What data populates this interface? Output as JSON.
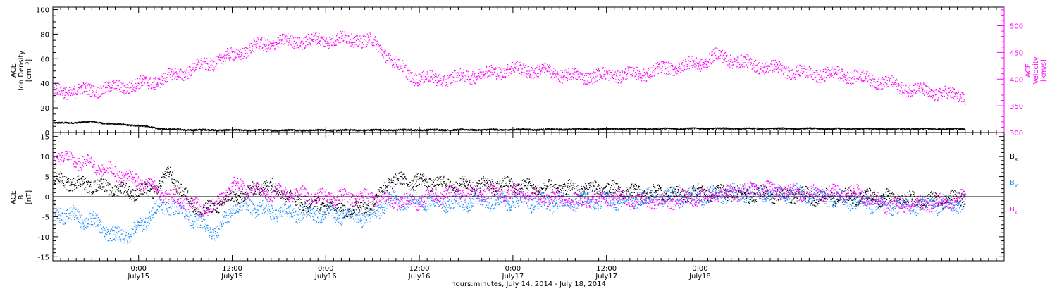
{
  "chart_data": [
    {
      "type": "scatter",
      "panel": "plasma",
      "ylabel_left": [
        "ACE",
        "Ion Density",
        "[cm⁻³]"
      ],
      "ylabel_right": [
        "ACE",
        "Velocity",
        "[km/s]"
      ],
      "left_axis": {
        "ylim": [
          0,
          102
        ],
        "ticks": [
          0,
          20,
          40,
          60,
          80,
          100
        ],
        "minor_step": 5
      },
      "right_axis": {
        "ylim": [
          300,
          535
        ],
        "ticks": [
          300,
          350,
          400,
          450,
          500
        ],
        "minor_step": 10
      },
      "series": [
        {
          "axis": "left",
          "color": "#000000",
          "knots": [
            [
              -10,
              8
            ],
            [
              -6,
              9
            ],
            [
              -3,
              7
            ],
            [
              0,
              6
            ],
            [
              2,
              4
            ],
            [
              4,
              3
            ],
            [
              6,
              2.5
            ],
            [
              12,
              2.2
            ],
            [
              24,
              2.2
            ],
            [
              36,
              2.4
            ],
            [
              48,
              2.6
            ],
            [
              60,
              3.2
            ],
            [
              72,
              3.6
            ],
            [
              84,
              3.5
            ],
            [
              96,
              3.3
            ],
            [
              106,
              3.2
            ]
          ],
          "noise": 0.6
        },
        {
          "axis": "right",
          "color": "#ff00ff",
          "knots": [
            [
              -10,
              378
            ],
            [
              -6,
              380
            ],
            [
              -3,
              385
            ],
            [
              0,
              390
            ],
            [
              3,
              400
            ],
            [
              6,
              415
            ],
            [
              9,
              430
            ],
            [
              12,
              445
            ],
            [
              15,
              462
            ],
            [
              18,
              470
            ],
            [
              21,
              472
            ],
            [
              24,
              475
            ],
            [
              28,
              475
            ],
            [
              30,
              470
            ],
            [
              33,
              430
            ],
            [
              35,
              405
            ],
            [
              38,
              400
            ],
            [
              40,
              402
            ],
            [
              44,
              410
            ],
            [
              48,
              420
            ],
            [
              52,
              415
            ],
            [
              56,
              405
            ],
            [
              60,
              408
            ],
            [
              64,
              410
            ],
            [
              68,
              422
            ],
            [
              72,
              430
            ],
            [
              74,
              445
            ],
            [
              78,
              430
            ],
            [
              82,
              420
            ],
            [
              86,
              410
            ],
            [
              90,
              410
            ],
            [
              94,
              400
            ],
            [
              98,
              385
            ],
            [
              102,
              375
            ],
            [
              106,
              368
            ]
          ],
          "noise": 12
        }
      ]
    },
    {
      "type": "scatter",
      "panel": "magnetic-field",
      "ylabel_left": [
        "ACE",
        "B",
        "[nT]"
      ],
      "ylim": [
        -16,
        16
      ],
      "ticks": [
        -15,
        -10,
        -5,
        0,
        5,
        10,
        15
      ],
      "minor_step": 1,
      "zero_line": true,
      "legend": [
        "B",
        "B",
        "B"
      ],
      "legend_sub": [
        "x",
        "y",
        "z"
      ],
      "series": [
        {
          "color": "#000000",
          "knots": [
            [
              -10,
              4
            ],
            [
              -6,
              3
            ],
            [
              -3,
              2
            ],
            [
              0,
              1
            ],
            [
              2,
              2
            ],
            [
              4,
              6
            ],
            [
              6,
              0
            ],
            [
              8,
              -4
            ],
            [
              10,
              -2
            ],
            [
              12,
              0
            ],
            [
              14,
              1
            ],
            [
              16,
              3
            ],
            [
              18,
              2
            ],
            [
              20,
              -1
            ],
            [
              22,
              -2
            ],
            [
              24,
              -2
            ],
            [
              26,
              -3
            ],
            [
              28,
              -3
            ],
            [
              30,
              -2
            ],
            [
              32,
              4
            ],
            [
              36,
              4
            ],
            [
              40,
              3
            ],
            [
              44,
              3
            ],
            [
              48,
              3
            ],
            [
              52,
              2
            ],
            [
              56,
              2
            ],
            [
              60,
              2
            ],
            [
              64,
              1
            ],
            [
              68,
              1
            ],
            [
              72,
              1
            ],
            [
              76,
              1
            ],
            [
              80,
              0.5
            ],
            [
              84,
              0.5
            ],
            [
              88,
              0
            ],
            [
              92,
              0
            ],
            [
              96,
              0
            ],
            [
              100,
              -1
            ],
            [
              104,
              -0.5
            ],
            [
              106,
              0
            ]
          ],
          "noise": 1.6
        },
        {
          "color": "#1a8fff",
          "knots": [
            [
              -10,
              -4
            ],
            [
              -6,
              -6
            ],
            [
              -3,
              -10
            ],
            [
              0,
              -8
            ],
            [
              2,
              -3
            ],
            [
              4,
              -2
            ],
            [
              6,
              -4
            ],
            [
              8,
              -7
            ],
            [
              10,
              -9
            ],
            [
              12,
              -3
            ],
            [
              14,
              -2
            ],
            [
              16,
              -3
            ],
            [
              18,
              -4
            ],
            [
              20,
              -4
            ],
            [
              24,
              -4
            ],
            [
              28,
              -5
            ],
            [
              30,
              -5
            ],
            [
              32,
              -1
            ],
            [
              36,
              -1
            ],
            [
              40,
              -1.5
            ],
            [
              44,
              -1
            ],
            [
              48,
              -1
            ],
            [
              52,
              -1.5
            ],
            [
              56,
              -1
            ],
            [
              60,
              -1
            ],
            [
              64,
              -0.5
            ],
            [
              68,
              0
            ],
            [
              72,
              0
            ],
            [
              76,
              1
            ],
            [
              80,
              1
            ],
            [
              84,
              1
            ],
            [
              88,
              0
            ],
            [
              92,
              -1
            ],
            [
              96,
              -2
            ],
            [
              100,
              -2
            ],
            [
              104,
              -2
            ],
            [
              106,
              -1
            ]
          ],
          "noise": 1.8
        },
        {
          "color": "#ff00ff",
          "knots": [
            [
              -10,
              10
            ],
            [
              -6,
              8
            ],
            [
              -3,
              6
            ],
            [
              0,
              4
            ],
            [
              2,
              2
            ],
            [
              4,
              0
            ],
            [
              6,
              -1
            ],
            [
              8,
              -3
            ],
            [
              10,
              -2
            ],
            [
              12,
              3
            ],
            [
              14,
              2
            ],
            [
              16,
              1
            ],
            [
              18,
              1
            ],
            [
              20,
              1
            ],
            [
              22,
              0
            ],
            [
              24,
              0
            ],
            [
              26,
              0
            ],
            [
              28,
              0
            ],
            [
              30,
              0
            ],
            [
              32,
              -1
            ],
            [
              36,
              -1
            ],
            [
              40,
              1
            ],
            [
              44,
              1
            ],
            [
              48,
              1
            ],
            [
              52,
              0
            ],
            [
              56,
              -1
            ],
            [
              60,
              0
            ],
            [
              64,
              -1
            ],
            [
              68,
              -1
            ],
            [
              72,
              0
            ],
            [
              76,
              1
            ],
            [
              80,
              2
            ],
            [
              84,
              1
            ],
            [
              88,
              1
            ],
            [
              92,
              1
            ],
            [
              96,
              -2
            ],
            [
              100,
              -2
            ],
            [
              104,
              -1
            ],
            [
              106,
              0
            ]
          ],
          "noise": 1.6
        }
      ]
    }
  ],
  "x_axis": {
    "range_hours": [
      -11,
      111
    ],
    "data_end_hours": 106,
    "ticks": [
      {
        "h": 0,
        "time": "0:00",
        "date": "July15"
      },
      {
        "h": 12,
        "time": "12:00",
        "date": "July15"
      },
      {
        "h": 24,
        "time": "0:00",
        "date": "July16"
      },
      {
        "h": 36,
        "time": "12:00",
        "date": "July16"
      },
      {
        "h": 48,
        "time": "0:00",
        "date": "July17"
      },
      {
        "h": 60,
        "time": "12:00",
        "date": "July17"
      },
      {
        "h": 72,
        "time": "0:00",
        "date": "July18"
      }
    ],
    "minor_step_hours": 1,
    "label": "hours:minutes, July 14, 2014 - July 18, 2014"
  }
}
